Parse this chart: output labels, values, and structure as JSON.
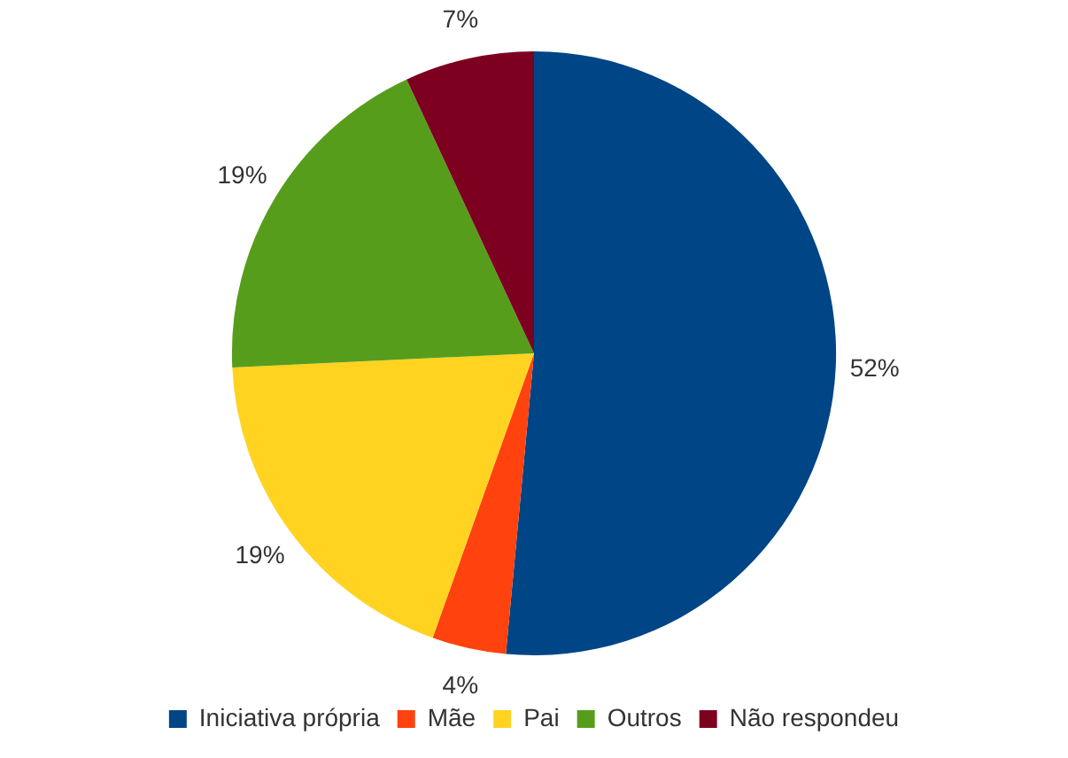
{
  "chart_data": {
    "type": "pie",
    "categories": [
      "Iniciativa própria",
      "Mãe",
      "Pai",
      "Outros",
      "Não respondeu"
    ],
    "values": [
      52,
      4,
      19,
      19,
      7
    ],
    "colors": [
      "#004586",
      "#ff420e",
      "#ffd320",
      "#579d1c",
      "#7e0021"
    ],
    "value_labels": [
      "52%",
      "4%",
      "19%",
      "19%",
      "7%"
    ],
    "legend": "bottom"
  }
}
